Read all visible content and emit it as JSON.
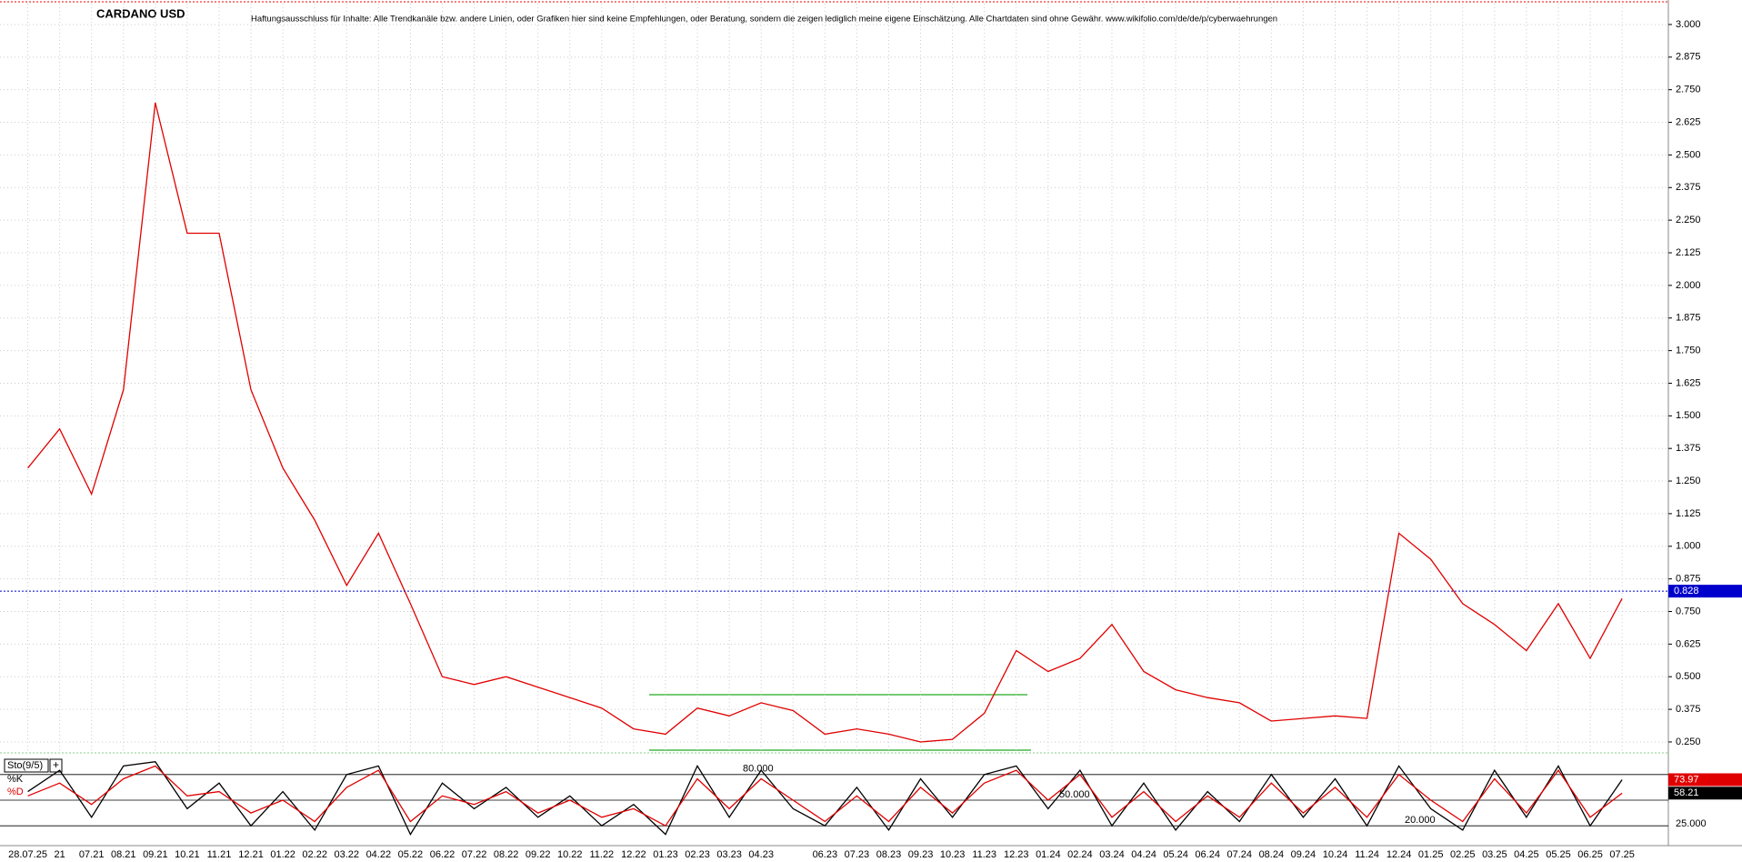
{
  "chart_data": [
    {
      "type": "line",
      "title": "CARDANO USD",
      "subtitle": "Haftungsausschluss für Inhalte: Alle Trendkanäle bzw. andere Linien, oder Grafiken hier sind keine Empfehlungen, oder Beratung, sondern die zeigen lediglich meine eigene Einschätzung. Alle Chartdaten sind ohne Gewähr. www.wikifolio.com/de/de/p/cyberwaehrungen",
      "categories": [
        "28.07.25",
        "21",
        "07.21",
        "08.21",
        "09.21",
        "10.21",
        "11.21",
        "12.21",
        "01.22",
        "02.22",
        "03.22",
        "04.22",
        "05.22",
        "06.22",
        "07.22",
        "08.22",
        "09.22",
        "10.22",
        "11.22",
        "12.22",
        "01.23",
        "02.23",
        "03.23",
        "04.23",
        null,
        "06.23",
        "07.23",
        "08.23",
        "09.23",
        "10.23",
        "11.23",
        "12.23",
        "01.24",
        "02.24",
        "03.24",
        "04.24",
        "05.24",
        "06.24",
        "07.24",
        "08.24",
        "09.24",
        "10.24",
        "11.24",
        "12.24",
        "01.25",
        "02.25",
        "03.25",
        "04.25",
        "05.25",
        "06.25",
        "07.25"
      ],
      "values": [
        1.3,
        1.45,
        1.2,
        1.6,
        2.7,
        2.2,
        2.2,
        1.6,
        1.3,
        1.1,
        0.85,
        1.05,
        0.78,
        0.5,
        0.47,
        0.5,
        0.46,
        0.42,
        0.38,
        0.3,
        0.28,
        0.38,
        0.35,
        0.4,
        0.37,
        0.28,
        0.3,
        0.28,
        0.25,
        0.26,
        0.36,
        0.6,
        0.52,
        0.57,
        0.7,
        0.52,
        0.45,
        0.42,
        0.4,
        0.33,
        0.34,
        0.35,
        0.34,
        1.05,
        0.95,
        0.78,
        0.7,
        0.6,
        0.78,
        0.57,
        0.8
      ],
      "color": "#e00000",
      "ylim": [
        0.215,
        3.08
      ],
      "yticks": [
        {
          "value": 0.25,
          "label": "0.250"
        },
        {
          "value": 0.375,
          "label": "0.375"
        },
        {
          "value": 0.5,
          "label": "0.500"
        },
        {
          "value": 0.625,
          "label": "0.625"
        },
        {
          "value": 0.75,
          "label": "0.750"
        },
        {
          "value": 0.875,
          "label": "0.875"
        },
        {
          "value": 1,
          "label": "1.000"
        },
        {
          "value": 1.125,
          "label": "1.125"
        },
        {
          "value": 1.25,
          "label": "1.250"
        },
        {
          "value": 1.375,
          "label": "1.375"
        },
        {
          "value": 1.5,
          "label": "1.500"
        },
        {
          "value": 1.625,
          "label": "1.625"
        },
        {
          "value": 1.75,
          "label": "1.750"
        },
        {
          "value": 1.875,
          "label": "1.875"
        },
        {
          "value": 2,
          "label": "2.000"
        },
        {
          "value": 2.125,
          "label": "2.125"
        },
        {
          "value": 2.25,
          "label": "2.250"
        },
        {
          "value": 2.375,
          "label": "2.375"
        },
        {
          "value": 2.5,
          "label": "2.500"
        },
        {
          "value": 2.625,
          "label": "2.625"
        },
        {
          "value": 2.75,
          "label": "2.750"
        },
        {
          "value": 2.875,
          "label": "2.875"
        },
        {
          "value": 3,
          "label": "3.000"
        }
      ],
      "last_price": {
        "value": 0.828,
        "label": "0.828"
      },
      "grid": true
    },
    {
      "type": "line",
      "title": "Sto(9/5)",
      "series": [
        {
          "name": "%K",
          "color": "#000000",
          "values": [
            60,
            85,
            30,
            90,
            95,
            40,
            70,
            20,
            60,
            15,
            80,
            90,
            10,
            70,
            40,
            65,
            30,
            55,
            20,
            45,
            10,
            90,
            30,
            85,
            40,
            20,
            65,
            15,
            75,
            30,
            80,
            90,
            40,
            85,
            20,
            70,
            15,
            60,
            25,
            80,
            30,
            75,
            20,
            90,
            40,
            15,
            85,
            30,
            90,
            20,
            73.97
          ]
        },
        {
          "name": "%D",
          "color": "#e00000",
          "values": [
            55,
            70,
            45,
            75,
            90,
            55,
            60,
            35,
            50,
            25,
            65,
            85,
            25,
            55,
            45,
            60,
            35,
            50,
            30,
            40,
            20,
            75,
            40,
            75,
            50,
            25,
            55,
            25,
            65,
            35,
            70,
            85,
            50,
            80,
            30,
            60,
            25,
            55,
            30,
            70,
            35,
            65,
            30,
            80,
            50,
            25,
            75,
            35,
            85,
            30,
            58.21
          ]
        }
      ],
      "ylim": [
        0,
        100
      ],
      "yticks": [
        {
          "value": 80,
          "label": "80.000"
        },
        {
          "value": 50,
          "label": "50.000"
        },
        {
          "value": 20,
          "label": "20.000"
        }
      ],
      "right_label": "25.000"
    }
  ]
}
